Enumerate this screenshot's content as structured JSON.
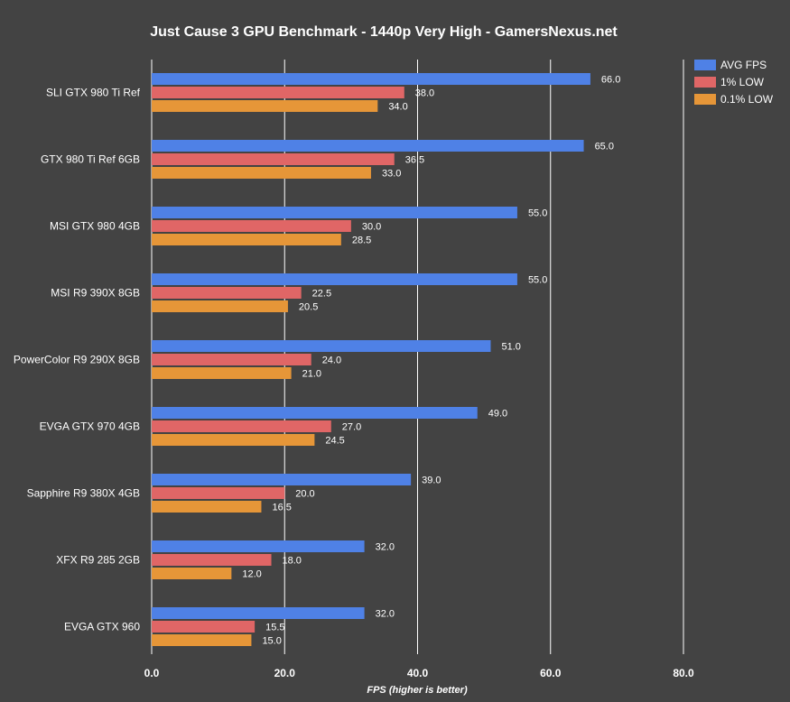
{
  "chart_data": {
    "type": "bar",
    "orientation": "horizontal",
    "title": "Just Cause 3 GPU Benchmark - 1440p Very High - GamersNexus.net",
    "xlabel": "FPS (higher is better)",
    "ylabel": "",
    "xlim": [
      0,
      80
    ],
    "x_ticks": [
      "0.0",
      "20.0",
      "40.0",
      "60.0",
      "80.0"
    ],
    "grid": "vertical",
    "legend_position": "top-right",
    "categories": [
      "SLI GTX 980 Ti Ref",
      "GTX 980 Ti Ref 6GB",
      "MSI GTX 980 4GB",
      "MSI R9 390X 8GB",
      "PowerColor R9 290X 8GB",
      "EVGA GTX 970 4GB",
      "Sapphire R9 380X 4GB",
      "XFX R9 285 2GB",
      "EVGA GTX 960"
    ],
    "series": [
      {
        "name": "AVG FPS",
        "color": "#4f81e6",
        "values": [
          66.0,
          65.0,
          55.0,
          55.0,
          51.0,
          49.0,
          39.0,
          32.0,
          32.0
        ],
        "labels": [
          "66.0",
          "65.0",
          "55.0",
          "55.0",
          "51.0",
          "49.0",
          "39.0",
          "32.0",
          "32.0"
        ]
      },
      {
        "name": "1% LOW",
        "color": "#e06666",
        "values": [
          38.0,
          36.5,
          30.0,
          22.5,
          24.0,
          27.0,
          20.0,
          18.0,
          15.5
        ],
        "labels": [
          "38.0",
          "36.5",
          "30.0",
          "22.5",
          "24.0",
          "27.0",
          "20.0",
          "18.0",
          "15.5"
        ]
      },
      {
        "name": "0.1% LOW",
        "color": "#e69638",
        "values": [
          34.0,
          33.0,
          28.5,
          20.5,
          21.0,
          24.5,
          16.5,
          12.0,
          15.0
        ],
        "labels": [
          "34.0",
          "33.0",
          "28.5",
          "20.5",
          "21.0",
          "24.5",
          "16.5",
          "12.0",
          "15.0"
        ]
      }
    ]
  },
  "colors": {
    "background": "#434343",
    "gridline": "#ffffff",
    "text": "#ffffff"
  }
}
